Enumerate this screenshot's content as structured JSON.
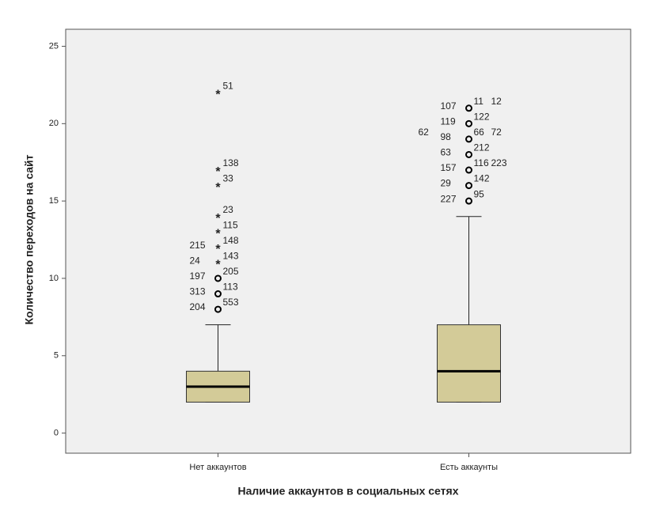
{
  "chart_data": {
    "type": "box",
    "x_label": "Наличие аккаунтов в социальных сетях",
    "y_label": "Количество переходов на сайт",
    "categories": [
      "Нет аккаунтов",
      "Есть аккаунты"
    ],
    "color": "#d3cb98",
    "ylim": [
      -1.3,
      26.1
    ],
    "yticks": [
      0,
      5,
      10,
      15,
      20,
      25
    ],
    "boxes": [
      {
        "low": 2,
        "q1": 2,
        "median": 3,
        "q3": 4,
        "high": 7,
        "outliers": [
          {
            "value": 8,
            "marker": "circle",
            "labels": [
              "553",
              "204"
            ]
          },
          {
            "value": 9,
            "marker": "circle",
            "labels": [
              "113",
              "313"
            ]
          },
          {
            "value": 10,
            "marker": "circle",
            "labels": [
              "205",
              "197"
            ]
          },
          {
            "value": 11,
            "marker": "star",
            "labels": [
              "143",
              "24"
            ]
          },
          {
            "value": 12,
            "marker": "star",
            "labels": [
              "148",
              "215"
            ]
          },
          {
            "value": 13,
            "marker": "star",
            "labels": [
              "115"
            ]
          },
          {
            "value": 14,
            "marker": "star",
            "labels": [
              "23"
            ]
          },
          {
            "value": 16,
            "marker": "star",
            "labels": [
              "33"
            ]
          },
          {
            "value": 17,
            "marker": "star",
            "labels": [
              "138"
            ]
          },
          {
            "value": 22,
            "marker": "star",
            "labels": [
              "51"
            ]
          }
        ]
      },
      {
        "low": 2,
        "q1": 2,
        "median": 4,
        "q3": 7,
        "high": 14,
        "outliers": [
          {
            "value": 15,
            "marker": "circle",
            "labels": [
              "95",
              "227"
            ]
          },
          {
            "value": 16,
            "marker": "circle",
            "labels": [
              "142",
              "29"
            ]
          },
          {
            "value": 17,
            "marker": "circle",
            "labels": [
              "116",
              "157",
              "223"
            ]
          },
          {
            "value": 18,
            "marker": "circle",
            "labels": [
              "212",
              "63"
            ]
          },
          {
            "value": 19,
            "marker": "circle",
            "labels": [
              "66",
              "98",
              "72",
              "62"
            ]
          },
          {
            "value": 20,
            "marker": "circle",
            "labels": [
              "122",
              "119"
            ]
          },
          {
            "value": 21,
            "marker": "circle",
            "labels": [
              "11",
              "107",
              "12"
            ]
          }
        ]
      }
    ]
  }
}
